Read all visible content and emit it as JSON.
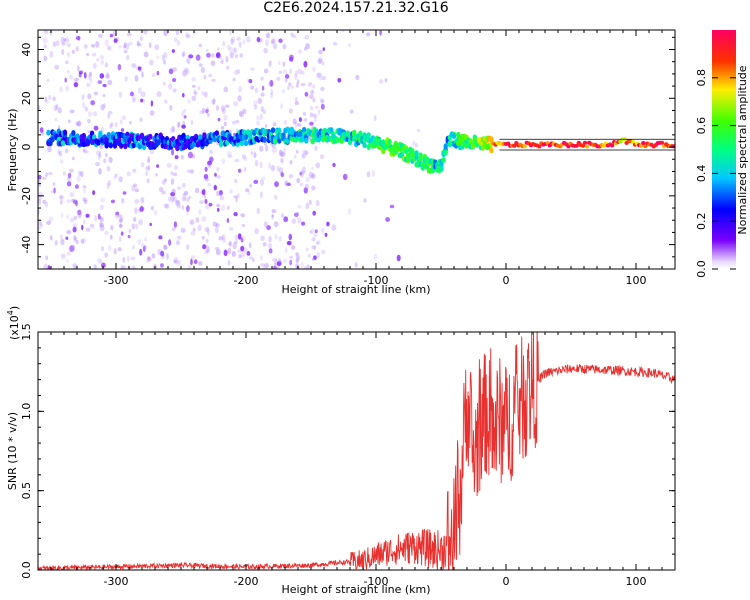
{
  "title": "C2E6.2024.157.21.32.G16",
  "colors": {
    "snr_line": "#e8302e",
    "ridge_low": "#6a00ff",
    "axis": "#000000"
  },
  "chart_data": [
    {
      "type": "heatmap",
      "xlabel": "Height of straight line (km)",
      "ylabel": "Frequency (Hz)",
      "xlim": [
        -360,
        130
      ],
      "ylim": [
        -50,
        48
      ],
      "x_ticks": [
        "-300",
        "-200",
        "-100",
        "0",
        "100"
      ],
      "x_tick_values": [
        -300,
        -200,
        -100,
        0,
        100
      ],
      "y_ticks": [
        "-40",
        "-20",
        "0",
        "20",
        "40"
      ],
      "y_tick_values": [
        -40,
        -20,
        0,
        20,
        40
      ],
      "colorbar": {
        "label": "Normalized spectral amplitude",
        "range": [
          0,
          1
        ],
        "ticks": [
          "0.0",
          "0.2",
          "0.4",
          "0.6",
          "0.8"
        ],
        "tick_values": [
          0,
          0.2,
          0.4,
          0.6,
          0.8
        ]
      },
      "ridge": {
        "x": [
          -350,
          -300,
          -250,
          -200,
          -150,
          -120,
          -100,
          -80,
          -60,
          -50,
          -45,
          -40,
          -20,
          0,
          50,
          80,
          90,
          100,
          130
        ],
        "y": [
          4,
          3,
          2,
          4,
          5,
          4,
          2,
          -2,
          -7,
          -8,
          2,
          3,
          1,
          1,
          1,
          1,
          3,
          1,
          1
        ],
        "amplitude": [
          0.3,
          0.3,
          0.25,
          0.35,
          0.45,
          0.45,
          0.5,
          0.55,
          0.5,
          0.4,
          0.4,
          0.45,
          0.6,
          0.9,
          0.95,
          0.9,
          0.8,
          0.9,
          0.9
        ]
      },
      "noise_extent_x": [
        -360,
        -140
      ]
    },
    {
      "type": "line",
      "xlabel": "Height of straight line (km)",
      "ylabel": "SNR (10 * v/v)",
      "y_multiplier_label": "(x10",
      "y_multiplier_exponent": "4",
      "y_multiplier_close": ")",
      "xlim": [
        -360,
        130
      ],
      "ylim": [
        0,
        1.5
      ],
      "x_ticks": [
        "-300",
        "-200",
        "-100",
        "0",
        "100"
      ],
      "x_tick_values": [
        -300,
        -200,
        -100,
        0,
        100
      ],
      "y_ticks": [
        "0.0",
        "0.5",
        "1.0",
        "1.5"
      ],
      "y_tick_values": [
        0,
        0.5,
        1.0,
        1.5
      ],
      "series": [
        {
          "x": [
            -360,
            -300,
            -250,
            -200,
            -150,
            -110,
            -90,
            -70,
            -50,
            -40,
            -35,
            -30,
            -25,
            -20,
            -15,
            -10,
            -5,
            0,
            10,
            20,
            30,
            50,
            80,
            100,
            115,
            130
          ],
          "values": [
            0.01,
            0.02,
            0.03,
            0.02,
            0.03,
            0.06,
            0.12,
            0.15,
            0.12,
            0.2,
            0.5,
            1.1,
            0.7,
            0.9,
            1.0,
            0.85,
            0.95,
            0.9,
            1.05,
            1.15,
            1.24,
            1.27,
            1.26,
            1.25,
            1.24,
            1.2
          ]
        }
      ]
    }
  ]
}
